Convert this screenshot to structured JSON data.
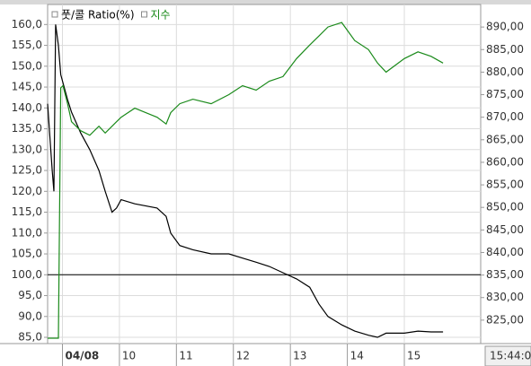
{
  "chart_data": {
    "type": "line",
    "legend": [
      {
        "name": "풋/콜 Ratio(%)",
        "color": "#000000"
      },
      {
        "name": "지수",
        "color": "#1a8a1a"
      }
    ],
    "x": [
      8.74,
      8.82,
      8.85,
      8.88,
      8.93,
      8.97,
      9.01,
      9.09,
      9.16,
      9.32,
      9.48,
      9.64,
      9.75,
      9.87,
      9.95,
      10.03,
      10.27,
      10.66,
      10.82,
      10.9,
      11.06,
      11.29,
      11.61,
      11.92,
      12.16,
      12.4,
      12.63,
      12.87,
      13.11,
      13.34,
      13.5,
      13.66,
      13.9,
      14.13,
      14.37,
      14.53,
      14.68,
      15.0,
      15.24,
      15.47,
      15.68
    ],
    "series": [
      {
        "name": "풋/콜 Ratio(%)",
        "color": "#000000",
        "values": [
          141,
          125,
          120,
          160,
          155,
          148,
          146,
          142,
          139,
          134,
          130,
          125,
          120,
          115,
          116,
          118,
          117,
          116,
          114,
          110,
          107,
          106,
          105,
          105,
          104,
          103,
          102,
          100.5,
          99,
          97,
          93,
          90,
          88,
          86.5,
          85.5,
          85,
          86,
          86,
          86.5,
          86.3,
          86.3
        ]
      },
      {
        "name": "지수",
        "color": "#1a8a1a",
        "axis": "y2",
        "values": [
          821,
          821,
          821,
          821,
          821,
          876.5,
          877,
          873,
          869,
          867,
          866,
          868,
          866.5,
          868,
          869,
          870,
          872,
          870,
          868.5,
          871,
          873,
          874,
          873,
          875,
          877,
          876,
          878,
          879,
          883,
          886,
          888,
          890,
          891,
          887,
          885,
          882,
          880,
          883,
          884.5,
          883.5,
          882
        ]
      }
    ],
    "xlim": [
      8.74,
      16.34
    ],
    "xticks": [
      {
        "value": 9,
        "label": "04/08"
      },
      {
        "value": 10,
        "label": "10"
      },
      {
        "value": 11,
        "label": "11"
      },
      {
        "value": 12,
        "label": "12"
      },
      {
        "value": 13,
        "label": "13"
      },
      {
        "value": 14,
        "label": "14"
      },
      {
        "value": 15,
        "label": "15"
      }
    ],
    "ylim": [
      83.5,
      164.8
    ],
    "yticks": [
      {
        "value": 85,
        "label": "85,0"
      },
      {
        "value": 90,
        "label": "90,0"
      },
      {
        "value": 95,
        "label": "95,0"
      },
      {
        "value": 100,
        "label": "100,0"
      },
      {
        "value": 105,
        "label": "105,0"
      },
      {
        "value": 110,
        "label": "110,0"
      },
      {
        "value": 115,
        "label": "115,0"
      },
      {
        "value": 120,
        "label": "120,0"
      },
      {
        "value": 125,
        "label": "125,0"
      },
      {
        "value": 130,
        "label": "130,0"
      },
      {
        "value": 135,
        "label": "135,0"
      },
      {
        "value": 140,
        "label": "140,0"
      },
      {
        "value": 145,
        "label": "145,0"
      },
      {
        "value": 150,
        "label": "150,0"
      },
      {
        "value": 155,
        "label": "155,0"
      },
      {
        "value": 160,
        "label": "160,0"
      }
    ],
    "y2lim": [
      819.8,
      895
    ],
    "y2ticks": [
      {
        "value": 825,
        "label": "825,00"
      },
      {
        "value": 830,
        "label": "830,00"
      },
      {
        "value": 835,
        "label": "835,00"
      },
      {
        "value": 840,
        "label": "840,00"
      },
      {
        "value": 845,
        "label": "845,00"
      },
      {
        "value": 850,
        "label": "850,00"
      },
      {
        "value": 855,
        "label": "855,00"
      },
      {
        "value": 860,
        "label": "860,00"
      },
      {
        "value": 865,
        "label": "865,00"
      },
      {
        "value": 870,
        "label": "870,00"
      },
      {
        "value": 875,
        "label": "875,00"
      },
      {
        "value": 880,
        "label": "880,00"
      },
      {
        "value": 885,
        "label": "885,00"
      },
      {
        "value": 890,
        "label": "890,00"
      }
    ],
    "reference_line": 100,
    "cursor_time_label": "15:44:0",
    "grid": true
  }
}
